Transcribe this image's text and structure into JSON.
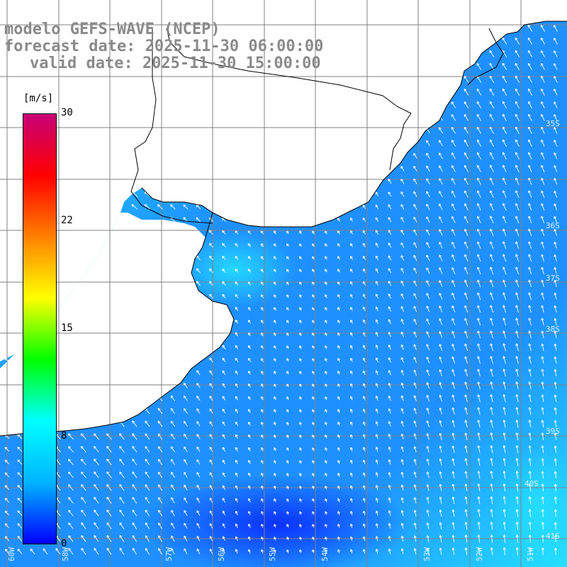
{
  "title": {
    "model": "modelo GEFS-WAVE (NCEP)",
    "forecast": "forecast date: 2025-11-30 06:00:00",
    "valid": "valid date: 2025-11-30 15:00:00"
  },
  "colorbar": {
    "unit": "[m/s]",
    "ticks": [
      "30",
      "22",
      "15",
      "8",
      "0"
    ],
    "tick_values": [
      30,
      22,
      15,
      8,
      0
    ],
    "vmin": 0,
    "vmax": 30,
    "colors": [
      "#0000ff",
      "#00b4ff",
      "#00ffff",
      "#00ff00",
      "#ffff00",
      "#ff8000",
      "#ff0000",
      "#c80078"
    ]
  },
  "map": {
    "land_color": "#ffffff",
    "coast_color": "#000000",
    "grid_color": "#808080",
    "arrow_color": "#ffffff",
    "field_colors": {
      "low": "#0a2cff",
      "mid": "#1e90ff",
      "high": "#24e0ff"
    },
    "lon_labels": [
      "60W",
      "58W",
      "57W",
      "56W",
      "55W",
      "54W",
      "53W",
      "52W",
      "51W"
    ],
    "lat_labels": [
      "35S",
      "36S",
      "37S",
      "38S",
      "39S",
      "40S",
      "41S"
    ]
  }
}
